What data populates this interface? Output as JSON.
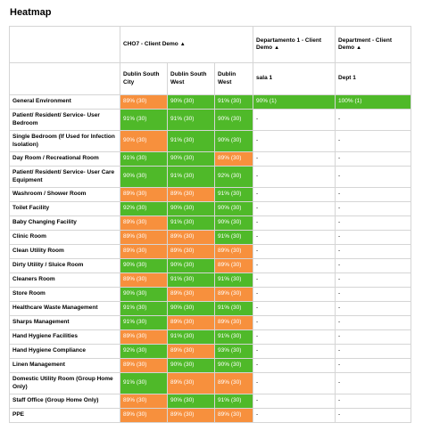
{
  "title": "Heatmap",
  "colors": {
    "green": "#4fb929",
    "orange": "#f7903d"
  },
  "groups": [
    {
      "label": "CHO7 - Client Demo",
      "icon": "caret-up-icon"
    },
    {
      "label": "Departamento 1 - Client Demo",
      "icon": "caret-up-icon"
    },
    {
      "label": "Department - Client Demo",
      "icon": "caret-up-icon"
    }
  ],
  "columns": [
    "Dublin South City",
    "Dublin South West",
    "Dublin West",
    "sala 1",
    "Dept 1"
  ],
  "rows": [
    {
      "label": "General Environment",
      "cells": [
        {
          "text": "89% (30)",
          "color": "orange"
        },
        {
          "text": "90% (30)",
          "color": "green"
        },
        {
          "text": "91% (30)",
          "color": "green"
        },
        {
          "text": "90% (1)",
          "color": "green"
        },
        {
          "text": "100% (1)",
          "color": "green"
        }
      ]
    },
    {
      "label": "Patient/ Resident/ Service- User Bedroom",
      "cells": [
        {
          "text": "91% (30)",
          "color": "green"
        },
        {
          "text": "91% (30)",
          "color": "green"
        },
        {
          "text": "90% (30)",
          "color": "green"
        },
        {
          "text": "-",
          "color": "empty"
        },
        {
          "text": "-",
          "color": "empty"
        }
      ]
    },
    {
      "label": "Single Bedroom (If Used for Infection Isolation)",
      "cells": [
        {
          "text": "90% (30)",
          "color": "orange"
        },
        {
          "text": "91% (30)",
          "color": "green"
        },
        {
          "text": "90% (30)",
          "color": "green"
        },
        {
          "text": "-",
          "color": "empty"
        },
        {
          "text": "-",
          "color": "empty"
        }
      ]
    },
    {
      "label": "Day Room / Recreational Room",
      "cells": [
        {
          "text": "91% (30)",
          "color": "green"
        },
        {
          "text": "90% (30)",
          "color": "green"
        },
        {
          "text": "89% (30)",
          "color": "orange"
        },
        {
          "text": "-",
          "color": "empty"
        },
        {
          "text": "-",
          "color": "empty"
        }
      ]
    },
    {
      "label": "Patient/ Resident/ Service- User Care Equipment",
      "cells": [
        {
          "text": "90% (30)",
          "color": "green"
        },
        {
          "text": "91% (30)",
          "color": "green"
        },
        {
          "text": "92% (30)",
          "color": "green"
        },
        {
          "text": "-",
          "color": "empty"
        },
        {
          "text": "-",
          "color": "empty"
        }
      ]
    },
    {
      "label": "Washroom / Shower Room",
      "cells": [
        {
          "text": "89% (30)",
          "color": "orange"
        },
        {
          "text": "89% (30)",
          "color": "orange"
        },
        {
          "text": "91% (30)",
          "color": "green"
        },
        {
          "text": "-",
          "color": "empty"
        },
        {
          "text": "-",
          "color": "empty"
        }
      ]
    },
    {
      "label": "Toilet Facility",
      "cells": [
        {
          "text": "92% (30)",
          "color": "green"
        },
        {
          "text": "90% (30)",
          "color": "green"
        },
        {
          "text": "90% (30)",
          "color": "green"
        },
        {
          "text": "-",
          "color": "empty"
        },
        {
          "text": "-",
          "color": "empty"
        }
      ]
    },
    {
      "label": "Baby Changing Facility",
      "cells": [
        {
          "text": "89% (30)",
          "color": "orange"
        },
        {
          "text": "91% (30)",
          "color": "green"
        },
        {
          "text": "90% (30)",
          "color": "green"
        },
        {
          "text": "-",
          "color": "empty"
        },
        {
          "text": "-",
          "color": "empty"
        }
      ]
    },
    {
      "label": "Clinic Room",
      "cells": [
        {
          "text": "89% (30)",
          "color": "orange"
        },
        {
          "text": "89% (30)",
          "color": "orange"
        },
        {
          "text": "91% (30)",
          "color": "green"
        },
        {
          "text": "-",
          "color": "empty"
        },
        {
          "text": "-",
          "color": "empty"
        }
      ]
    },
    {
      "label": "Clean Utility Room",
      "cells": [
        {
          "text": "89% (30)",
          "color": "orange"
        },
        {
          "text": "89% (30)",
          "color": "orange"
        },
        {
          "text": "89% (30)",
          "color": "orange"
        },
        {
          "text": "-",
          "color": "empty"
        },
        {
          "text": "-",
          "color": "empty"
        }
      ]
    },
    {
      "label": "Dirty Utility / Sluice Room",
      "cells": [
        {
          "text": "90% (30)",
          "color": "green"
        },
        {
          "text": "90% (30)",
          "color": "green"
        },
        {
          "text": "89% (30)",
          "color": "orange"
        },
        {
          "text": "-",
          "color": "empty"
        },
        {
          "text": "-",
          "color": "empty"
        }
      ]
    },
    {
      "label": "Cleaners Room",
      "cells": [
        {
          "text": "89% (30)",
          "color": "orange"
        },
        {
          "text": "91% (30)",
          "color": "green"
        },
        {
          "text": "91% (30)",
          "color": "green"
        },
        {
          "text": "-",
          "color": "empty"
        },
        {
          "text": "-",
          "color": "empty"
        }
      ]
    },
    {
      "label": "Store Room",
      "cells": [
        {
          "text": "90% (30)",
          "color": "green"
        },
        {
          "text": "89% (30)",
          "color": "orange"
        },
        {
          "text": "89% (30)",
          "color": "orange"
        },
        {
          "text": "-",
          "color": "empty"
        },
        {
          "text": "-",
          "color": "empty"
        }
      ]
    },
    {
      "label": "Healthcare Waste Management",
      "cells": [
        {
          "text": "91% (30)",
          "color": "green"
        },
        {
          "text": "90% (30)",
          "color": "green"
        },
        {
          "text": "91% (30)",
          "color": "green"
        },
        {
          "text": "-",
          "color": "empty"
        },
        {
          "text": "-",
          "color": "empty"
        }
      ]
    },
    {
      "label": "Sharps Management",
      "cells": [
        {
          "text": "91% (30)",
          "color": "green"
        },
        {
          "text": "89% (30)",
          "color": "orange"
        },
        {
          "text": "89% (30)",
          "color": "orange"
        },
        {
          "text": "-",
          "color": "empty"
        },
        {
          "text": "-",
          "color": "empty"
        }
      ]
    },
    {
      "label": "Hand Hygiene Facilities",
      "cells": [
        {
          "text": "89% (30)",
          "color": "orange"
        },
        {
          "text": "91% (30)",
          "color": "green"
        },
        {
          "text": "91% (30)",
          "color": "green"
        },
        {
          "text": "-",
          "color": "empty"
        },
        {
          "text": "-",
          "color": "empty"
        }
      ]
    },
    {
      "label": "Hand Hygiene Compliance",
      "cells": [
        {
          "text": "92% (30)",
          "color": "green"
        },
        {
          "text": "89% (30)",
          "color": "orange"
        },
        {
          "text": "93% (30)",
          "color": "green"
        },
        {
          "text": "-",
          "color": "empty"
        },
        {
          "text": "-",
          "color": "empty"
        }
      ]
    },
    {
      "label": "Linen Management",
      "cells": [
        {
          "text": "89% (30)",
          "color": "orange"
        },
        {
          "text": "90% (30)",
          "color": "green"
        },
        {
          "text": "90% (30)",
          "color": "green"
        },
        {
          "text": "-",
          "color": "empty"
        },
        {
          "text": "-",
          "color": "empty"
        }
      ]
    },
    {
      "label": "Domestic Utility Room (Group Home Only)",
      "cells": [
        {
          "text": "91% (30)",
          "color": "green"
        },
        {
          "text": "89% (30)",
          "color": "orange"
        },
        {
          "text": "89% (30)",
          "color": "orange"
        },
        {
          "text": "-",
          "color": "empty"
        },
        {
          "text": "-",
          "color": "empty"
        }
      ]
    },
    {
      "label": "Staff Office (Group Home Only)",
      "cells": [
        {
          "text": "89% (30)",
          "color": "orange"
        },
        {
          "text": "90% (30)",
          "color": "green"
        },
        {
          "text": "91% (30)",
          "color": "green"
        },
        {
          "text": "-",
          "color": "empty"
        },
        {
          "text": "-",
          "color": "empty"
        }
      ]
    },
    {
      "label": "PPE",
      "cells": [
        {
          "text": "89% (30)",
          "color": "orange"
        },
        {
          "text": "89% (30)",
          "color": "orange"
        },
        {
          "text": "89% (30)",
          "color": "orange"
        },
        {
          "text": "-",
          "color": "empty"
        },
        {
          "text": "-",
          "color": "empty"
        }
      ]
    }
  ]
}
